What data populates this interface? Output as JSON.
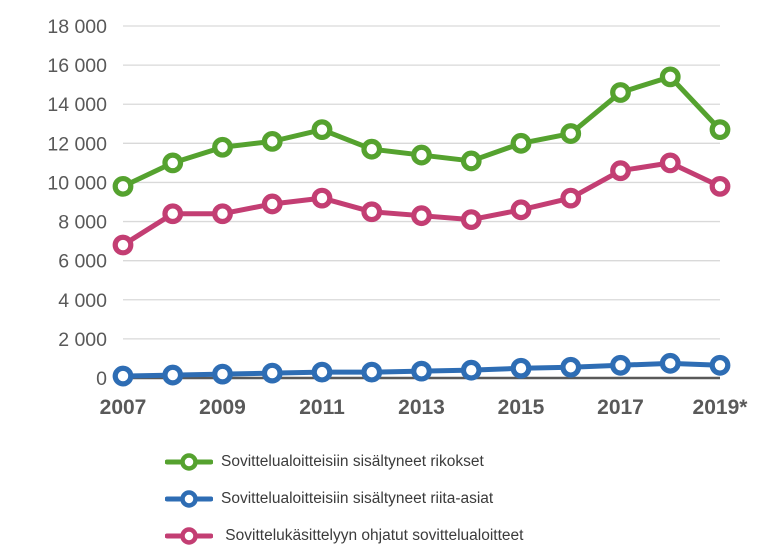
{
  "chart_data": {
    "type": "line",
    "x": [
      2007,
      2008,
      2009,
      2010,
      2011,
      2012,
      2013,
      2014,
      2015,
      2016,
      2017,
      2018,
      2019
    ],
    "x_tick_labels": [
      "2007",
      "2009",
      "2011",
      "2013",
      "2015",
      "2017",
      "2019*"
    ],
    "x_tick_years": [
      2007,
      2009,
      2011,
      2013,
      2015,
      2017,
      2019
    ],
    "y_ticks": [
      0,
      2000,
      4000,
      6000,
      8000,
      10000,
      12000,
      14000,
      16000,
      18000
    ],
    "y_tick_labels": [
      "0",
      "2 000",
      "4 000",
      "6 000",
      "8 000",
      "10 000",
      "12 000",
      "14 000",
      "16 000",
      "18 000"
    ],
    "ylim": [
      0,
      18000
    ],
    "xlim": [
      2007,
      2019
    ],
    "grid": true,
    "legend_position": "bottom",
    "title": "",
    "xlabel": "",
    "ylabel": "",
    "series": [
      {
        "name": "Sovittelualoitteisiin sisältyneet rikokset",
        "color": "#55a22f",
        "values": [
          9800,
          11000,
          11800,
          12100,
          12700,
          11700,
          11400,
          11100,
          12000,
          12500,
          14600,
          15400,
          12700
        ]
      },
      {
        "name": "Sovittelualoitteisiin sisältyneet riita-asiat",
        "color": "#2e6db4",
        "values": [
          100,
          150,
          200,
          250,
          300,
          300,
          350,
          400,
          500,
          550,
          650,
          750,
          650
        ]
      },
      {
        "name": " Sovittelukäsittelyyn ohjatut sovittelualoitteet",
        "color": "#c33e73",
        "values": [
          6800,
          8400,
          8400,
          8900,
          9200,
          8500,
          8300,
          8100,
          8600,
          9200,
          10600,
          11000,
          9800
        ]
      }
    ],
    "colors": {
      "grid_line": "#d9d9d9",
      "zero_axis_line": "#595959",
      "y_tick_label": "#595959",
      "x_tick_label": "#595959",
      "legend_text": "#3b3b3b",
      "background": "#ffffff",
      "marker_fill": "#ffffff"
    }
  }
}
